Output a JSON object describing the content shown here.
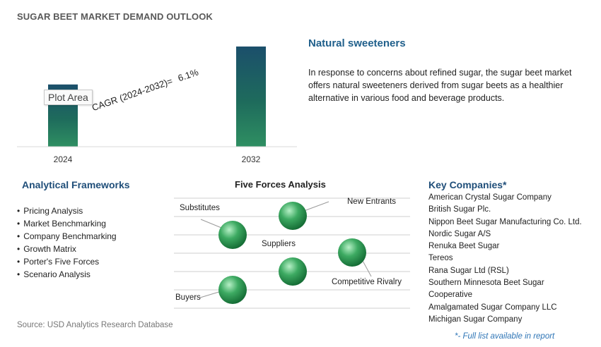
{
  "title": "SUGAR BEET MARKET DEMAND OUTLOOK",
  "chart_data": {
    "type": "bar",
    "categories": [
      "2024",
      "2032"
    ],
    "values": [
      1.0,
      1.61
    ],
    "ylim": [
      0,
      1.7
    ],
    "plot_area_tag": "Plot Area",
    "cagr_label": "CAGR (2024-2032)=",
    "cagr_value": "6.1%",
    "colors": {
      "bar_top": "#1b4f6b",
      "bar_mid": "#1e6b5c",
      "bar_bottom": "#2f8f62",
      "axis": "#d9d9d9"
    }
  },
  "info": {
    "title": "Natural sweeteners",
    "text": "In response to concerns about refined sugar, the sugar beet market offers natural sweeteners derived from sugar beets as a healthier alternative in various food and beverage products."
  },
  "frameworks": {
    "title": "Analytical Frameworks",
    "items": [
      "Pricing Analysis",
      "Market Benchmarking",
      "Company Benchmarking",
      "Growth Matrix",
      "Porter's Five Forces",
      "Scenario Analysis"
    ]
  },
  "five_forces": {
    "title": "Five Forces Analysis",
    "labels": {
      "substitutes": "Substitutes",
      "new_entrants": "New Entrants",
      "suppliers": "Suppliers",
      "competitive_rivalry": "Competitive Rivalry",
      "buyers": "Buyers"
    },
    "colors": {
      "sphere_light": "#b6f0c6",
      "sphere_mid": "#3daa62",
      "sphere_dark": "#146b34",
      "lines": "#cfcfcf"
    }
  },
  "companies": {
    "title": "Key Companies*",
    "items": [
      "American Crystal Sugar Company",
      "British Sugar Plc.",
      "Nippon Beet Sugar Manufacturing Co. Ltd.",
      "Nordic Sugar A/S",
      "Renuka Beet Sugar",
      "Tereos",
      "Rana Sugar Ltd (RSL)",
      "Southern Minnesota Beet Sugar Cooperative",
      "Amalgamated Sugar Company LLC",
      "Michigan Sugar Company"
    ],
    "note": "*- Full list available in report"
  },
  "source": "Source: USD Analytics Research Database"
}
